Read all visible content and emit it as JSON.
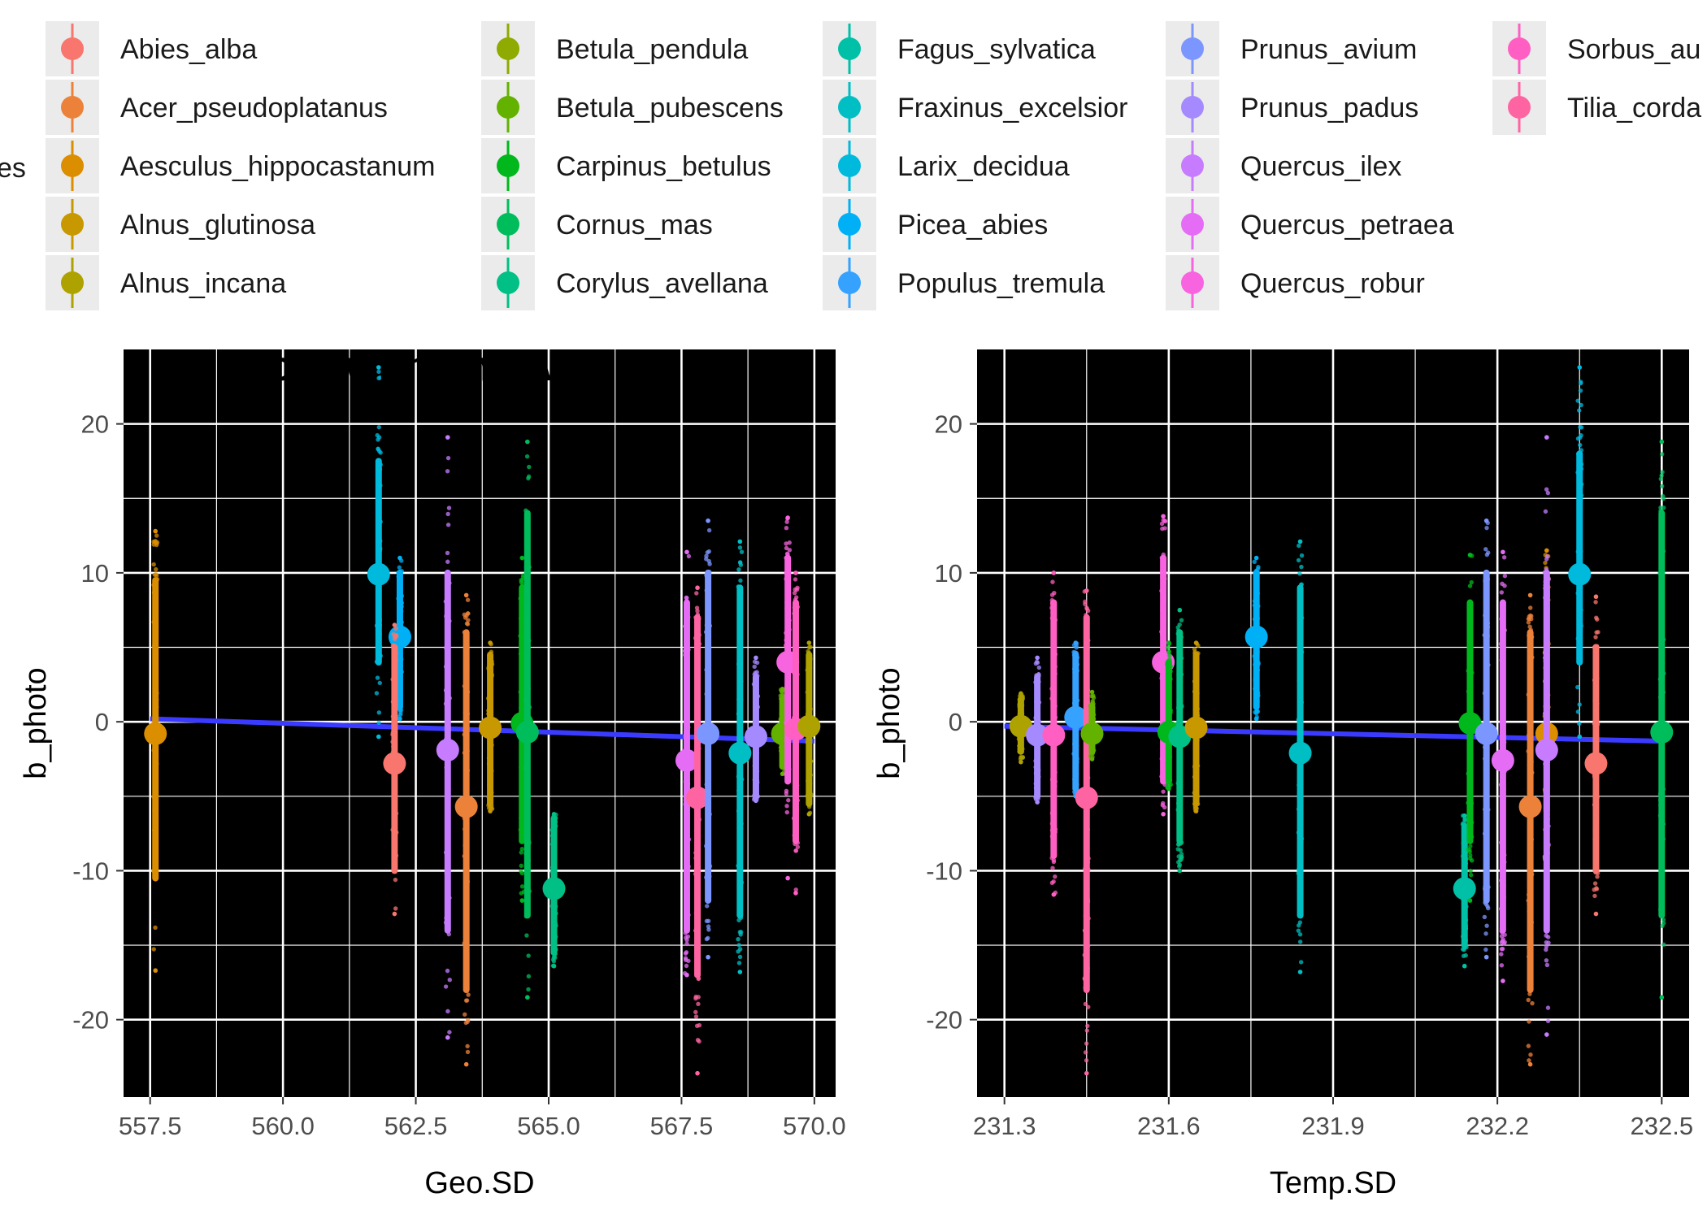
{
  "legend": {
    "title_fragment": "es",
    "items": [
      {
        "label": "Abies_alba",
        "color": "#F8766D"
      },
      {
        "label": "Acer_pseudoplatanus",
        "color": "#EC8239"
      },
      {
        "label": "Aesculus_hippocastanum",
        "color": "#DB8E00"
      },
      {
        "label": "Alnus_glutinosa",
        "color": "#C79800"
      },
      {
        "label": "Alnus_incana",
        "color": "#AEA200"
      },
      {
        "label": "Betula_pendula",
        "color": "#8FAA00"
      },
      {
        "label": "Betula_pubescens",
        "color": "#64B200"
      },
      {
        "label": "Carpinus_betulus",
        "color": "#00B81B"
      },
      {
        "label": "Cornus_mas",
        "color": "#00BD5C"
      },
      {
        "label": "Corylus_avellana",
        "color": "#00C085"
      },
      {
        "label": "Fagus_sylvatica",
        "color": "#00C1A7"
      },
      {
        "label": "Fraxinus_excelsior",
        "color": "#00BFC4"
      },
      {
        "label": "Larix_decidua",
        "color": "#00BADE"
      },
      {
        "label": "Picea_abies",
        "color": "#00B0F6"
      },
      {
        "label": "Populus_tremula",
        "color": "#35A2FF"
      },
      {
        "label": "Prunus_avium",
        "color": "#7C96FF"
      },
      {
        "label": "Prunus_padus",
        "color": "#A58AFF"
      },
      {
        "label": "Quercus_ilex",
        "color": "#C77CFF"
      },
      {
        "label": "Quercus_petraea",
        "color": "#E56CF5"
      },
      {
        "label": "Quercus_robur",
        "color": "#F863DF"
      },
      {
        "label": "Sorbus_au",
        "color": "#FF5FC3"
      },
      {
        "label": "Tilia_corda",
        "color": "#FF64A2"
      }
    ]
  },
  "colors": {
    "panel_bg": "#EBEBEB",
    "grid_major": "#FFFFFF",
    "trend_line": "#3B3BFF",
    "tick": "#333333"
  },
  "chart_data": [
    {
      "type": "scatter",
      "title": "photo with chill var",
      "xlabel": "Geo.SD",
      "ylabel": "b_photo",
      "xlim": [
        557.0,
        570.4
      ],
      "ylim": [
        -25.2,
        25.0
      ],
      "xticks": [
        557.5,
        560.0,
        562.5,
        565.0,
        567.5,
        570.0
      ],
      "xtick_labels": [
        "557.5",
        "560.0",
        "562.5",
        "565.0",
        "567.5",
        "570.0"
      ],
      "yticks": [
        -20,
        -10,
        0,
        10,
        20
      ],
      "ytick_labels": [
        "-20",
        "-10",
        "0",
        "10",
        "20"
      ],
      "grid": true,
      "trend_line": {
        "x": [
          557.5,
          570.0
        ],
        "y": [
          0.2,
          -1.3
        ]
      },
      "series": [
        {
          "name": "Aesculus_hippocastanum",
          "color": "#DB8E00",
          "x": 557.6,
          "mean": -0.8,
          "dense": [
            -10.5,
            9.5
          ],
          "range": [
            -16.7,
            12.8
          ]
        },
        {
          "name": "Larix_decidua",
          "color": "#00BADE",
          "x": 561.8,
          "mean": 9.9,
          "dense": [
            4.0,
            17.5
          ],
          "range": [
            -1.0,
            23.8
          ]
        },
        {
          "name": "Picea_abies",
          "color": "#00B0F6",
          "x": 562.2,
          "mean": 5.7,
          "dense": [
            1.0,
            10.0
          ],
          "range": [
            0.2,
            11.0
          ]
        },
        {
          "name": "Abies_alba",
          "color": "#F8766D",
          "x": 562.1,
          "mean": -2.8,
          "dense": [
            -10.0,
            5.0
          ],
          "range": [
            -12.9,
            6.5
          ]
        },
        {
          "name": "Quercus_ilex",
          "color": "#C77CFF",
          "x": 563.1,
          "mean": -1.9,
          "dense": [
            -14.0,
            10.0
          ],
          "range": [
            -21.2,
            19.1
          ]
        },
        {
          "name": "Acer_pseudoplatanus",
          "color": "#EC8239",
          "x": 563.45,
          "mean": -5.7,
          "dense": [
            -18.0,
            6.0
          ],
          "range": [
            -23.0,
            8.5
          ]
        },
        {
          "name": "Alnus_glutinosa",
          "color": "#C79800",
          "x": 563.9,
          "mean": -0.4,
          "dense": [
            -5.5,
            4.5
          ],
          "range": [
            -6.0,
            5.3
          ]
        },
        {
          "name": "Carpinus_betulus",
          "color": "#00B81B",
          "x": 564.5,
          "mean": -0.1,
          "dense": [
            -8.0,
            9.0
          ],
          "range": [
            -12.0,
            11.0
          ]
        },
        {
          "name": "Cornus_mas",
          "color": "#00BD5C",
          "x": 564.6,
          "mean": -0.7,
          "dense": [
            -13.0,
            14.0
          ],
          "range": [
            -18.5,
            18.8
          ]
        },
        {
          "name": "Corylus_avellana",
          "color": "#00C085",
          "x": 565.1,
          "mean": -11.2,
          "dense": [
            -15.5,
            -6.5
          ],
          "range": [
            -16.4,
            -6.2
          ]
        },
        {
          "name": "Quercus_petraea",
          "color": "#E56CF5",
          "x": 567.6,
          "mean": -2.6,
          "dense": [
            -14.0,
            8.0
          ],
          "range": [
            -17.0,
            11.4
          ]
        },
        {
          "name": "Tilia_corda",
          "color": "#FF64A2",
          "x": 567.8,
          "mean": -5.1,
          "dense": [
            -17.0,
            7.0
          ],
          "range": [
            -23.6,
            9.0
          ]
        },
        {
          "name": "Prunus_avium",
          "color": "#7C96FF",
          "x": 568.0,
          "mean": -0.8,
          "dense": [
            -12.0,
            10.0
          ],
          "range": [
            -15.8,
            13.5
          ]
        },
        {
          "name": "Fraxinus_excelsior",
          "color": "#00BFC4",
          "x": 568.6,
          "mean": -2.1,
          "dense": [
            -13.0,
            9.0
          ],
          "range": [
            -16.8,
            12.1
          ]
        },
        {
          "name": "Prunus_padus",
          "color": "#A58AFF",
          "x": 568.9,
          "mean": -1.0,
          "dense": [
            -5.0,
            3.0
          ],
          "range": [
            -5.3,
            4.3
          ]
        },
        {
          "name": "Betula_pubescens",
          "color": "#64B200",
          "x": 569.4,
          "mean": -0.8,
          "dense": [
            -3.0,
            1.5
          ],
          "range": [
            -3.5,
            2.2
          ]
        },
        {
          "name": "Quercus_robur",
          "color": "#F863DF",
          "x": 569.5,
          "mean": 4.0,
          "dense": [
            -4.0,
            11.0
          ],
          "range": [
            -10.5,
            13.7
          ]
        },
        {
          "name": "Sorbus_au",
          "color": "#FF5FC3",
          "x": 569.65,
          "mean": -0.5,
          "dense": [
            -8.0,
            8.0
          ],
          "range": [
            -11.5,
            10.0
          ]
        },
        {
          "name": "Alnus_incana",
          "color": "#AEA200",
          "x": 569.9,
          "mean": -0.3,
          "dense": [
            -5.5,
            4.5
          ],
          "range": [
            -6.2,
            5.3
          ]
        }
      ]
    },
    {
      "type": "scatter",
      "title": "",
      "xlabel": "Temp.SD",
      "ylabel": "b_photo",
      "xlim": [
        231.25,
        232.55
      ],
      "ylim": [
        -25.2,
        25.0
      ],
      "xticks": [
        231.3,
        231.6,
        231.9,
        232.2,
        232.5
      ],
      "xtick_labels": [
        "231.3",
        "231.6",
        "231.9",
        "232.2",
        "232.5"
      ],
      "yticks": [
        -20,
        -10,
        0,
        10,
        20
      ],
      "ytick_labels": [
        "-20",
        "-10",
        "0",
        "10",
        "20"
      ],
      "grid": true,
      "trend_line": {
        "x": [
          231.3,
          232.5
        ],
        "y": [
          -0.3,
          -1.3
        ]
      },
      "series": [
        {
          "name": "Alnus_incana",
          "color": "#AEA200",
          "x": 231.33,
          "mean": -0.3,
          "dense": [
            -2.0,
            1.5
          ],
          "range": [
            -2.7,
            1.9
          ]
        },
        {
          "name": "Prunus_padus",
          "color": "#A58AFF",
          "x": 231.36,
          "mean": -0.9,
          "dense": [
            -5.0,
            3.0
          ],
          "range": [
            -5.4,
            4.3
          ]
        },
        {
          "name": "Sorbus_au",
          "color": "#FF5FC3",
          "x": 231.39,
          "mean": -0.9,
          "dense": [
            -9.0,
            8.0
          ],
          "range": [
            -11.6,
            10.0
          ]
        },
        {
          "name": "Populus_tremula",
          "color": "#35A2FF",
          "x": 231.43,
          "mean": 0.3,
          "dense": [
            -4.5,
            4.5
          ],
          "range": [
            -5.0,
            5.3
          ]
        },
        {
          "name": "Tilia_corda",
          "color": "#FF64A2",
          "x": 231.45,
          "mean": -5.1,
          "dense": [
            -18.0,
            7.0
          ],
          "range": [
            -23.6,
            8.8
          ]
        },
        {
          "name": "Betula_pubescens",
          "color": "#64B200",
          "x": 231.46,
          "mean": -0.8,
          "dense": [
            -2.0,
            1.0
          ],
          "range": [
            -2.5,
            2.0
          ]
        },
        {
          "name": "Quercus_robur",
          "color": "#F863DF",
          "x": 231.59,
          "mean": 4.0,
          "dense": [
            -4.0,
            11.0
          ],
          "range": [
            -6.2,
            13.8
          ]
        },
        {
          "name": "Carpinus_betulus",
          "color": "#00B81B",
          "x": 231.6,
          "mean": -0.7,
          "dense": [
            -4.0,
            4.0
          ],
          "range": [
            -4.5,
            5.3
          ]
        },
        {
          "name": "Corylus_avellana",
          "color": "#00C085",
          "x": 231.62,
          "mean": -1.0,
          "dense": [
            -8.0,
            6.0
          ],
          "range": [
            -10.0,
            7.5
          ]
        },
        {
          "name": "Alnus_glutinosa",
          "color": "#C79800",
          "x": 231.65,
          "mean": -0.4,
          "dense": [
            -5.5,
            4.5
          ],
          "range": [
            -6.0,
            5.3
          ]
        },
        {
          "name": "Picea_abies",
          "color": "#00B0F6",
          "x": 231.76,
          "mean": 5.7,
          "dense": [
            1.0,
            10.0
          ],
          "range": [
            0.2,
            11.0
          ]
        },
        {
          "name": "Fraxinus_excelsior",
          "color": "#00BFC4",
          "x": 231.84,
          "mean": -2.1,
          "dense": [
            -13.0,
            9.0
          ],
          "range": [
            -16.8,
            12.1
          ]
        },
        {
          "name": "Fagus_sylvatica",
          "color": "#00C1A7",
          "x": 232.14,
          "mean": -11.2,
          "dense": [
            -15.0,
            -7.0
          ],
          "range": [
            -16.4,
            -6.3
          ]
        },
        {
          "name": "Carpinus_betulus",
          "color": "#00B81B",
          "x": 232.15,
          "mean": -0.1,
          "dense": [
            -8.0,
            8.0
          ],
          "range": [
            -12.0,
            11.2
          ]
        },
        {
          "name": "Prunus_avium",
          "color": "#7C96FF",
          "x": 232.18,
          "mean": -0.8,
          "dense": [
            -12.0,
            10.0
          ],
          "range": [
            -15.8,
            13.5
          ]
        },
        {
          "name": "Quercus_petraea",
          "color": "#E56CF5",
          "x": 232.21,
          "mean": -2.6,
          "dense": [
            -14.0,
            8.0
          ],
          "range": [
            -17.4,
            11.4
          ]
        },
        {
          "name": "Acer_pseudoplatanus",
          "color": "#EC8239",
          "x": 232.26,
          "mean": -5.7,
          "dense": [
            -18.0,
            6.0
          ],
          "range": [
            -23.0,
            8.5
          ]
        },
        {
          "name": "Aesculus_hippocastanum",
          "color": "#DB8E00",
          "x": 232.29,
          "mean": -0.8,
          "dense": [
            -6.0,
            9.0
          ],
          "range": [
            -10.0,
            11.5
          ]
        },
        {
          "name": "Quercus_ilex",
          "color": "#C77CFF",
          "x": 232.29,
          "mean": -1.9,
          "dense": [
            -14.0,
            10.0
          ],
          "range": [
            -21.0,
            19.1
          ]
        },
        {
          "name": "Larix_decidua",
          "color": "#00BADE",
          "x": 232.35,
          "mean": 9.9,
          "dense": [
            4.0,
            18.0
          ],
          "range": [
            -1.0,
            23.8
          ]
        },
        {
          "name": "Abies_alba",
          "color": "#F8766D",
          "x": 232.38,
          "mean": -2.8,
          "dense": [
            -10.0,
            5.0
          ],
          "range": [
            -12.9,
            8.4
          ]
        },
        {
          "name": "Cornus_mas",
          "color": "#00BD5C",
          "x": 232.5,
          "mean": -0.7,
          "dense": [
            -13.0,
            14.0
          ],
          "range": [
            -18.5,
            18.8
          ]
        }
      ]
    }
  ]
}
